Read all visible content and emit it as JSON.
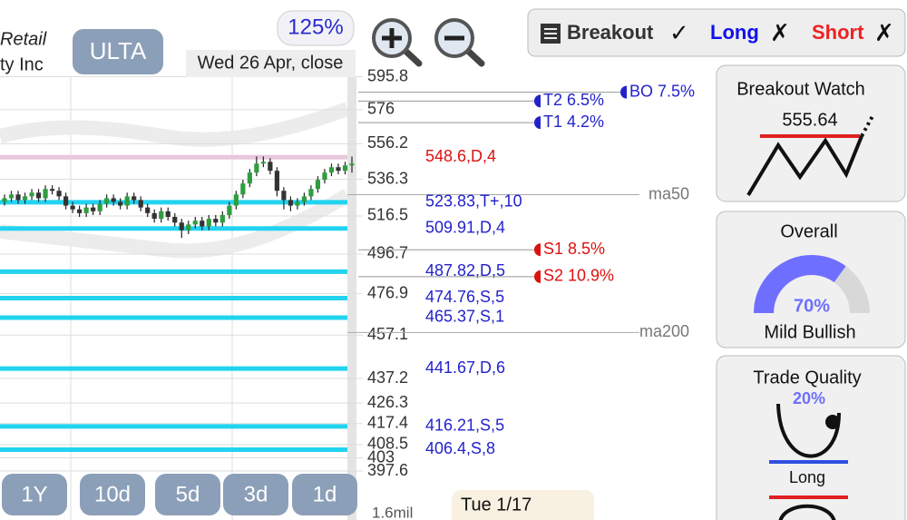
{
  "header": {
    "company_line1": "Retail",
    "company_line2": "ty Inc",
    "ticker": "ULTA",
    "zoom": "125%",
    "date": "Wed 26 Apr, close"
  },
  "toolbar": {
    "breakout": "Breakout",
    "breakout_mark": "✓",
    "long": "Long",
    "long_mark": "✗",
    "short": "Short",
    "short_mark": "✗"
  },
  "chart_data": {
    "type": "candlestick",
    "log_scale": true,
    "ylim": [
      397.6,
      600
    ],
    "yticks": [
      595.8,
      576,
      556.2,
      536.3,
      516.5,
      496.7,
      476.9,
      457.1,
      437.2,
      426.3,
      417.4,
      408.5,
      403,
      397.6
    ],
    "up_color": "#2e9e3e",
    "down_color": "#333333",
    "candles": [
      [
        524,
        528,
        522,
        526
      ],
      [
        526,
        530,
        524,
        528
      ],
      [
        528,
        530,
        523,
        525
      ],
      [
        525,
        529,
        523,
        527
      ],
      [
        527,
        531,
        525,
        529
      ],
      [
        529,
        531,
        524,
        526
      ],
      [
        526,
        533,
        524,
        531
      ],
      [
        531,
        533,
        528,
        530
      ],
      [
        530,
        532,
        525,
        527
      ],
      [
        527,
        529,
        520,
        522
      ],
      [
        522,
        524,
        518,
        520
      ],
      [
        520,
        522,
        516,
        518
      ],
      [
        518,
        523,
        516,
        521
      ],
      [
        521,
        523,
        517,
        519
      ],
      [
        519,
        525,
        517,
        523
      ],
      [
        523,
        528,
        521,
        526
      ],
      [
        526,
        528,
        522,
        524
      ],
      [
        524,
        526,
        520,
        522
      ],
      [
        522,
        529,
        520,
        527
      ],
      [
        527,
        529,
        523,
        525
      ],
      [
        525,
        527,
        519,
        521
      ],
      [
        521,
        523,
        516,
        518
      ],
      [
        518,
        520,
        513,
        515
      ],
      [
        515,
        521,
        513,
        519
      ],
      [
        519,
        521,
        514,
        516
      ],
      [
        516,
        518,
        511,
        513
      ],
      [
        513,
        515,
        505,
        509
      ],
      [
        509,
        514,
        507,
        512
      ],
      [
        512,
        516,
        510,
        514
      ],
      [
        514,
        516,
        509,
        511
      ],
      [
        511,
        517,
        509,
        515
      ],
      [
        515,
        517,
        511,
        513
      ],
      [
        513,
        519,
        511,
        517
      ],
      [
        517,
        524,
        515,
        522
      ],
      [
        522,
        530,
        520,
        528
      ],
      [
        528,
        536,
        526,
        534
      ],
      [
        534,
        542,
        532,
        540
      ],
      [
        540,
        549,
        538,
        545
      ],
      [
        545,
        549,
        543,
        546
      ],
      [
        546,
        548,
        539,
        541
      ],
      [
        541,
        543,
        527,
        530
      ],
      [
        530,
        532,
        520,
        525
      ],
      [
        525,
        527,
        519,
        522
      ],
      [
        522,
        526,
        520,
        524
      ],
      [
        524,
        529,
        522,
        527
      ],
      [
        527,
        533,
        525,
        531
      ],
      [
        531,
        538,
        529,
        536
      ],
      [
        536,
        542,
        534,
        540
      ],
      [
        540,
        545,
        538,
        543
      ],
      [
        543,
        545,
        539,
        541
      ],
      [
        541,
        546,
        539,
        544
      ],
      [
        544,
        549,
        540,
        545
      ]
    ],
    "levels": [
      {
        "price": 548.6,
        "label": "548.6,D,4",
        "line_color": "#e8c8dc",
        "text_color": "#dd1111"
      },
      {
        "price": 523.83,
        "label": "523.83,T+,10",
        "line_color": "#22d3f0",
        "text_color": "#2222cc"
      },
      {
        "price": 509.91,
        "label": "509.91,D,4",
        "line_color": "#22d3f0",
        "text_color": "#2222cc"
      },
      {
        "price": 487.82,
        "label": "487.82,D,5",
        "line_color": "#22d3f0",
        "text_color": "#2222cc"
      },
      {
        "price": 474.76,
        "label": "474.76,S,5",
        "line_color": "#22d3f0",
        "text_color": "#2222cc"
      },
      {
        "price": 465.37,
        "label": "465.37,S,1",
        "line_color": "#22d3f0",
        "text_color": "#2222cc"
      },
      {
        "price": 441.67,
        "label": "441.67,D,6",
        "line_color": "#22d3f0",
        "text_color": "#2222cc"
      },
      {
        "price": 416.21,
        "label": "416.21,S,5",
        "line_color": "#22d3f0",
        "text_color": "#2222cc"
      },
      {
        "price": 406.4,
        "label": "406.4,S,8",
        "line_color": "#22d3f0",
        "text_color": "#2222cc"
      }
    ],
    "moving_averages": [
      {
        "name": "ma50",
        "value": 527.9
      },
      {
        "name": "ma200",
        "value": 458.3
      }
    ],
    "targets": [
      {
        "label": "BO 7.5%",
        "price": 586.4,
        "color": "#2222cc"
      },
      {
        "label": "T2 6.5%",
        "price": 581.1,
        "color": "#2222cc"
      },
      {
        "label": "T1 4.2%",
        "price": 568.4,
        "color": "#2222cc"
      },
      {
        "label": "S1 8.5%",
        "price": 498.9,
        "color": "#dd1111"
      },
      {
        "label": "S2 10.9%",
        "price": 485.3,
        "color": "#dd1111"
      }
    ],
    "volume_label": "1.6mil",
    "date_label": "Tue 1/17"
  },
  "range_buttons": [
    "1Y",
    "10d",
    "5d",
    "3d",
    "1d"
  ],
  "cards": {
    "breakout_watch": {
      "title": "Breakout Watch",
      "price": "555.64"
    },
    "overall": {
      "title": "Overall",
      "score": 70,
      "score_label": "70%",
      "verdict": "Mild Bullish"
    },
    "trade_quality": {
      "title": "Trade Quality",
      "score": 20,
      "score_label": "20%",
      "side": "Long"
    }
  }
}
